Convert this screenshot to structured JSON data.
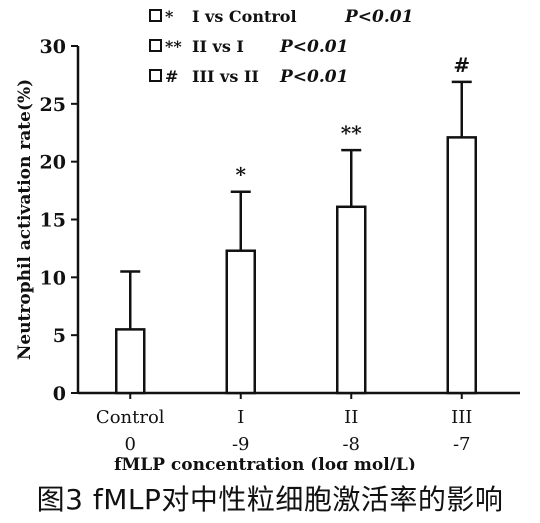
{
  "chart_data": {
    "type": "bar",
    "ylabel": "Neutrophil activation rate(%)",
    "xlabel": "fMLP concentration (log mol/L)",
    "ylim": [
      0,
      30
    ],
    "yticks": [
      "0",
      "5",
      "10",
      "15",
      "20",
      "25",
      "30"
    ],
    "categories": [
      "Control",
      "I",
      "II",
      "III"
    ],
    "concentrations": [
      "0",
      "-9",
      "-8",
      "-7"
    ],
    "values": [
      5.5,
      12.3,
      16.1,
      22.1
    ],
    "errors": [
      5.0,
      5.1,
      4.9,
      4.8
    ],
    "markers": [
      "",
      "*",
      "**",
      "#"
    ],
    "legend": [
      {
        "symbol": "*",
        "text": "I  vs Control",
        "p": "P<0.01"
      },
      {
        "symbol": "**",
        "text": "II  vs  I",
        "p": "P<0.01"
      },
      {
        "symbol": "#",
        "text": "III  vs  II",
        "p": "P<0.01"
      }
    ],
    "legend_position": "top-center",
    "grid": false
  },
  "caption": "图3  fMLP对中性粒细胞激活率的影响"
}
